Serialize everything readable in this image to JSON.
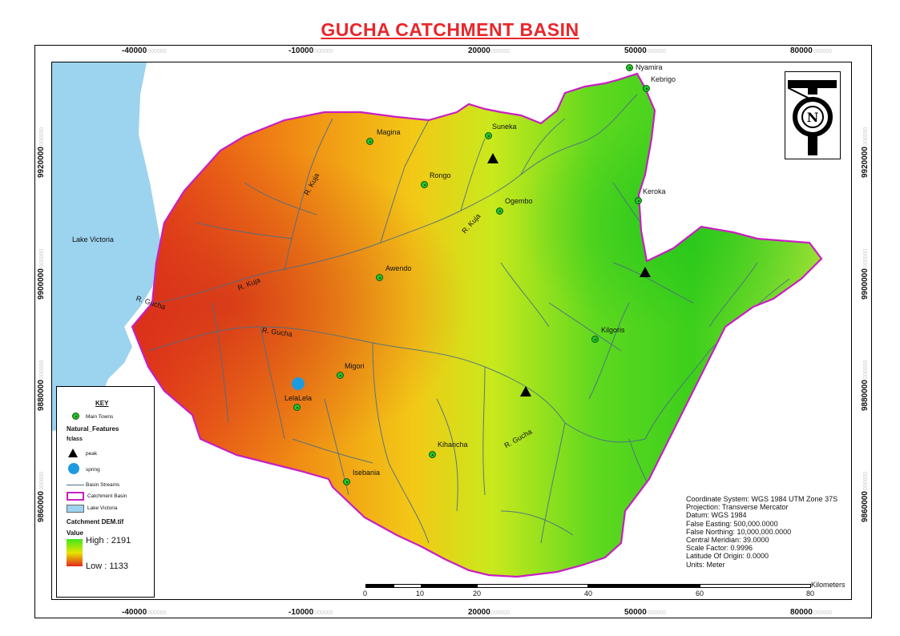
{
  "title": "GUCHA CATCHMENT BASIN",
  "grid": {
    "x_ticks": [
      "-40000",
      "-10000",
      "20000",
      "50000",
      "80000"
    ],
    "x_tick_suffix": "000000",
    "y_ticks": [
      "9920000",
      "9900000",
      "9880000",
      "9860000"
    ],
    "y_tick_suffix": "000000"
  },
  "lake_label": "Lake Victoria",
  "towns": [
    {
      "name": "Nyamira",
      "value": 0
    },
    {
      "name": "Keroka",
      "value": 0
    },
    {
      "name": "Suneka",
      "value": 0
    },
    {
      "name": "Magina",
      "value": 0
    },
    {
      "name": "Rongo",
      "value": 0
    },
    {
      "name": "Ogembo",
      "value": 0
    },
    {
      "name": "Kebrigo",
      "value": 0
    },
    {
      "name": "Awendo",
      "value": 0
    },
    {
      "name": "Kilgoris",
      "value": 0
    },
    {
      "name": "Migori",
      "value": 0
    },
    {
      "name": "LelaLela",
      "value": 0
    },
    {
      "name": "Kihancha",
      "value": 0
    },
    {
      "name": "Isebania",
      "value": 0
    }
  ],
  "rivers": {
    "kuja_1": "R. Kuja",
    "kuja_2": "R. Kuja",
    "kuja_3": "R. Kuja",
    "gucha_1": "R. Gucha",
    "gucha_2": "R. Gucha",
    "gucha_3": "R. Gucha"
  },
  "legend": {
    "title": "KEY",
    "main_towns": "Main  Towns",
    "natural_features": "Natural_Features",
    "fclass": "fclass",
    "peak": "peak",
    "spring": "spring",
    "basin_streams": "Basin  Streams",
    "catchment_basin": "Catchment Basin",
    "lake_victoria": "Lake Victoria",
    "dem_title": "Catchment DEM.tif",
    "value": "Value",
    "high": "High : 2191",
    "low": "Low : 1133"
  },
  "info": [
    "Coordinate System: WGS 1984 UTM Zone 37S",
    "Projection: Transverse Mercator",
    "Datum: WGS 1984",
    "False Easting: 500,000.0000",
    "False Northing: 10,000,000.0000",
    "Central Meridian: 39.0000",
    "Scale Factor: 0.9996",
    "Latitude Of Origin: 0.0000",
    "Units: Meter"
  ],
  "scalebar": {
    "unit": "Kilometers",
    "labels": [
      "0",
      "10",
      "20",
      "40",
      "60",
      "80"
    ]
  },
  "colors": {
    "dem_high": "#3de61c",
    "dem_mid": "#e6e600",
    "dem_low": "#e3281d",
    "lake": "#9cd3ef",
    "basin_outline": "#c91ec4",
    "streams": "#4a6e86",
    "title": "#e8262b"
  }
}
